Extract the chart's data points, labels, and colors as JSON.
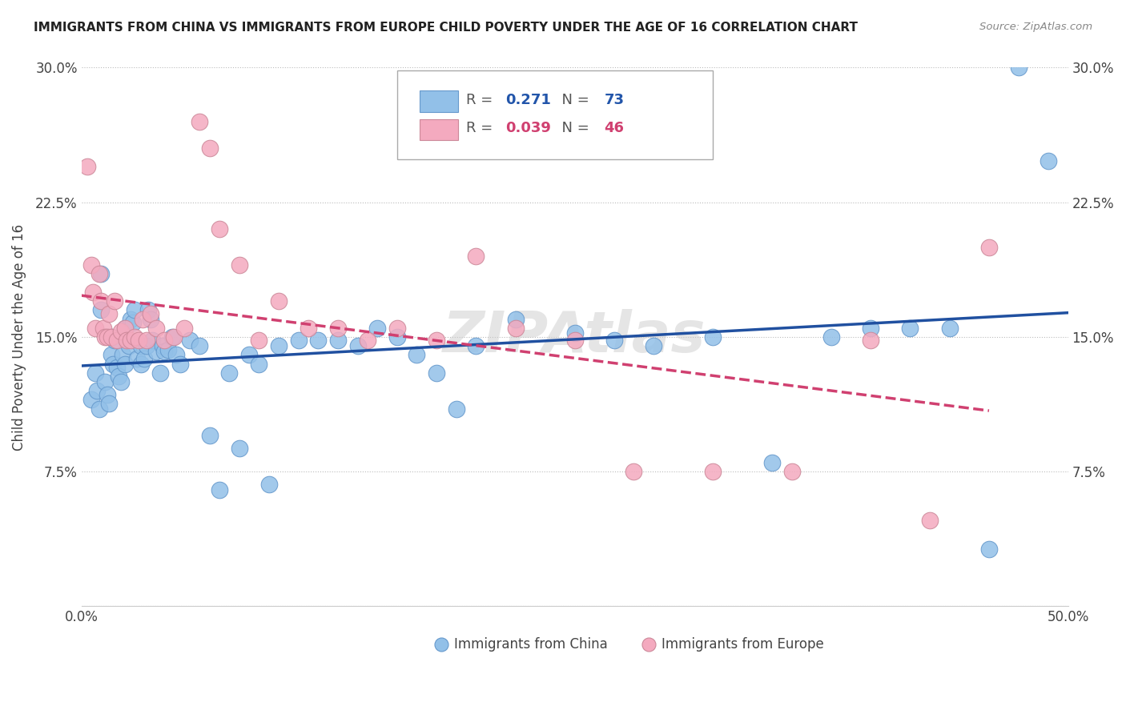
{
  "title": "IMMIGRANTS FROM CHINA VS IMMIGRANTS FROM EUROPE CHILD POVERTY UNDER THE AGE OF 16 CORRELATION CHART",
  "source": "Source: ZipAtlas.com",
  "ylabel": "Child Poverty Under the Age of 16",
  "xlim": [
    0,
    0.5
  ],
  "ylim": [
    0,
    0.3
  ],
  "china_R": 0.271,
  "china_N": 73,
  "europe_R": 0.039,
  "europe_N": 46,
  "china_color": "#92C0E8",
  "europe_color": "#F4AABF",
  "china_line_color": "#2050A0",
  "europe_line_color": "#D04070",
  "china_x": [
    0.005,
    0.007,
    0.008,
    0.009,
    0.01,
    0.01,
    0.012,
    0.013,
    0.014,
    0.015,
    0.015,
    0.016,
    0.017,
    0.018,
    0.019,
    0.02,
    0.021,
    0.022,
    0.022,
    0.023,
    0.024,
    0.025,
    0.026,
    0.027,
    0.028,
    0.03,
    0.03,
    0.032,
    0.033,
    0.034,
    0.035,
    0.036,
    0.038,
    0.04,
    0.041,
    0.042,
    0.044,
    0.046,
    0.048,
    0.05,
    0.055,
    0.06,
    0.065,
    0.07,
    0.075,
    0.08,
    0.085,
    0.09,
    0.095,
    0.1,
    0.11,
    0.12,
    0.13,
    0.14,
    0.15,
    0.16,
    0.17,
    0.18,
    0.19,
    0.2,
    0.22,
    0.25,
    0.27,
    0.29,
    0.32,
    0.35,
    0.38,
    0.4,
    0.42,
    0.44,
    0.46,
    0.475,
    0.49
  ],
  "china_y": [
    0.115,
    0.13,
    0.12,
    0.11,
    0.185,
    0.165,
    0.125,
    0.118,
    0.113,
    0.15,
    0.14,
    0.135,
    0.148,
    0.133,
    0.128,
    0.125,
    0.14,
    0.135,
    0.155,
    0.148,
    0.145,
    0.16,
    0.158,
    0.165,
    0.138,
    0.135,
    0.145,
    0.138,
    0.145,
    0.165,
    0.16,
    0.148,
    0.142,
    0.13,
    0.145,
    0.142,
    0.143,
    0.15,
    0.14,
    0.135,
    0.148,
    0.145,
    0.095,
    0.065,
    0.13,
    0.088,
    0.14,
    0.135,
    0.068,
    0.145,
    0.148,
    0.148,
    0.148,
    0.145,
    0.155,
    0.15,
    0.14,
    0.13,
    0.11,
    0.145,
    0.16,
    0.152,
    0.148,
    0.145,
    0.15,
    0.08,
    0.15,
    0.155,
    0.155,
    0.155,
    0.032,
    0.3,
    0.248
  ],
  "europe_x": [
    0.003,
    0.005,
    0.006,
    0.007,
    0.009,
    0.01,
    0.011,
    0.012,
    0.013,
    0.014,
    0.015,
    0.017,
    0.018,
    0.02,
    0.022,
    0.023,
    0.025,
    0.027,
    0.029,
    0.031,
    0.033,
    0.035,
    0.038,
    0.042,
    0.047,
    0.052,
    0.06,
    0.065,
    0.07,
    0.08,
    0.09,
    0.1,
    0.115,
    0.13,
    0.145,
    0.16,
    0.18,
    0.2,
    0.22,
    0.25,
    0.28,
    0.32,
    0.36,
    0.4,
    0.43,
    0.46
  ],
  "europe_y": [
    0.245,
    0.19,
    0.175,
    0.155,
    0.185,
    0.17,
    0.155,
    0.15,
    0.15,
    0.163,
    0.15,
    0.17,
    0.148,
    0.153,
    0.155,
    0.148,
    0.148,
    0.15,
    0.148,
    0.16,
    0.148,
    0.163,
    0.155,
    0.148,
    0.15,
    0.155,
    0.27,
    0.255,
    0.21,
    0.19,
    0.148,
    0.17,
    0.155,
    0.155,
    0.148,
    0.155,
    0.148,
    0.195,
    0.155,
    0.148,
    0.075,
    0.075,
    0.075,
    0.148,
    0.048,
    0.2
  ]
}
